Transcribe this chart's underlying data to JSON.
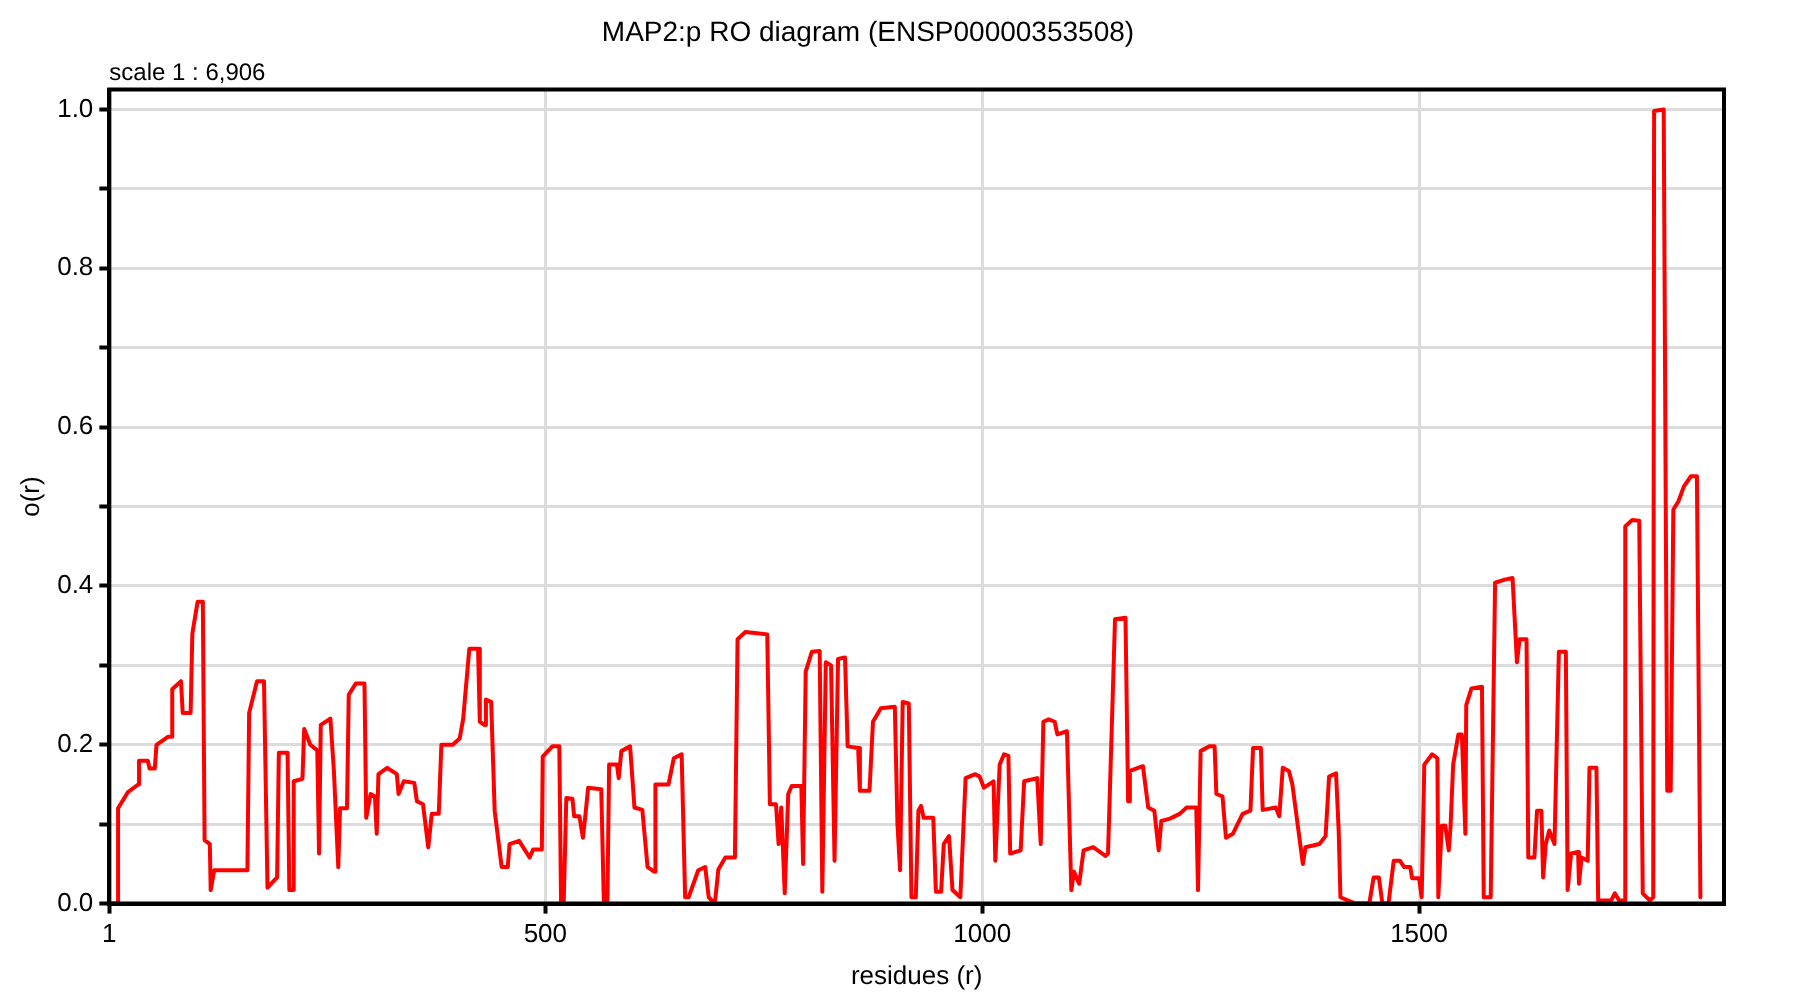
{
  "chart_data": {
    "type": "line",
    "title": "MAP2:p RO diagram (ENSP00000353508)",
    "xlabel": "residues (r)",
    "ylabel": "o(r)",
    "annotations": [
      "scale 1 : 6,906"
    ],
    "xlim": [
      1,
      1849
    ],
    "xticks": [
      1,
      500,
      1000,
      1500
    ],
    "ylim": [
      0,
      1.025
    ],
    "yticks": [
      {
        "value": 0,
        "label": "0.0"
      },
      {
        "value": 0.1,
        "label": null
      },
      {
        "value": 0.2,
        "label": "0.2"
      },
      {
        "value": 0.3,
        "label": null
      },
      {
        "value": 0.4,
        "label": "0.4"
      },
      {
        "value": 0.5,
        "label": null
      },
      {
        "value": 0.6,
        "label": "0.6"
      },
      {
        "value": 0.7,
        "label": null
      },
      {
        "value": 0.8,
        "label": "0.8"
      },
      {
        "value": 0.9,
        "label": null
      },
      {
        "value": 1.0,
        "label": "1.0"
      }
    ],
    "grid": true,
    "legend": false,
    "marker": "none",
    "line_style": "solid",
    "x": [
      1,
      11,
      11,
      22,
      34,
      35,
      45,
      47,
      53,
      55,
      68,
      73,
      73,
      83,
      85,
      94,
      96,
      102,
      108,
      110,
      116,
      117,
      121,
      159,
      161,
      170,
      178,
      182,
      193,
      195,
      205,
      207,
      212,
      212,
      222,
      224,
      231,
      239,
      241,
      243,
      254,
      258,
      263,
      265,
      273,
      275,
      283,
      293,
      295,
      300,
      305,
      307,
      309,
      319,
      330,
      332,
      338,
      350,
      353,
      360,
      366,
      370,
      378,
      381,
      394,
      402,
      406,
      413,
      423,
      425,
      430,
      432,
      438,
      442,
      450,
      457,
      459,
      470,
      482,
      486,
      496,
      497,
      508,
      516,
      518,
      521,
      524,
      531,
      533,
      539,
      543,
      546,
      549,
      564,
      567,
      571,
      573,
      582,
      584,
      587,
      597,
      602,
      611,
      617,
      625,
      626,
      641,
      647,
      656,
      660,
      664,
      675,
      683,
      687,
      694,
      698,
      706,
      717,
      720,
      729,
      754,
      757,
      764,
      767,
      770,
      774,
      778,
      782,
      793,
      795,
      798,
      805,
      814,
      817,
      821,
      827,
      831,
      835,
      843,
      846,
      858,
      860,
      871,
      875,
      884,
      900,
      903,
      906,
      909,
      916,
      919,
      924,
      927,
      930,
      933,
      944,
      947,
      953,
      956,
      962,
      966,
      975,
      981,
      992,
      997,
      1002,
      1013,
      1015,
      1020,
      1025,
      1030,
      1032,
      1044,
      1048,
      1063,
      1067,
      1070,
      1076,
      1083,
      1086,
      1097,
      1102,
      1105,
      1111,
      1116,
      1127,
      1141,
      1144,
      1152,
      1164,
      1167,
      1169,
      1184,
      1190,
      1197,
      1202,
      1205,
      1215,
      1226,
      1234,
      1245,
      1247,
      1250,
      1260,
      1266,
      1268,
      1275,
      1279,
      1287,
      1298,
      1307,
      1310,
      1319,
      1321,
      1336,
      1340,
      1344,
      1351,
      1355,
      1367,
      1370,
      1386,
      1393,
      1397,
      1405,
      1408,
      1410,
      1427,
      1443,
      1448,
      1454,
      1458,
      1465,
      1471,
      1478,
      1483,
      1490,
      1492,
      1500,
      1503,
      1506,
      1515,
      1521,
      1522,
      1526,
      1530,
      1534,
      1536,
      1539,
      1545,
      1549,
      1553,
      1554,
      1560,
      1572,
      1574,
      1582,
      1587,
      1598,
      1607,
      1612,
      1615,
      1623,
      1625,
      1632,
      1635,
      1640,
      1642,
      1645,
      1649,
      1655,
      1660,
      1668,
      1670,
      1674,
      1682,
      1683,
      1686,
      1693,
      1695,
      1703,
      1705,
      1720,
      1724,
      1729,
      1735,
      1736,
      1744,
      1752,
      1756,
      1764,
      1768,
      1769,
      1780,
      1784,
      1788,
      1791,
      1797,
      1803,
      1811,
      1818,
      1822
    ],
    "series": [
      {
        "color": "#ff0000",
        "values": [
          0,
          0,
          0.12,
          0.14,
          0.15,
          0.18,
          0.18,
          0.17,
          0.17,
          0.2,
          0.21,
          0.21,
          0.27,
          0.28,
          0.24,
          0.24,
          0.34,
          0.38,
          0.38,
          0.08,
          0.075,
          0.017,
          0.042,
          0.042,
          0.24,
          0.28,
          0.28,
          0.02,
          0.033,
          0.19,
          0.19,
          0.017,
          0.017,
          0.154,
          0.157,
          0.22,
          0.2,
          0.193,
          0.063,
          0.225,
          0.233,
          0.167,
          0.046,
          0.12,
          0.12,
          0.263,
          0.277,
          0.277,
          0.108,
          0.138,
          0.135,
          0.088,
          0.163,
          0.171,
          0.163,
          0.138,
          0.154,
          0.152,
          0.129,
          0.125,
          0.071,
          0.113,
          0.113,
          0.2,
          0.2,
          0.208,
          0.233,
          0.321,
          0.321,
          0.229,
          0.225,
          0.257,
          0.254,
          0.117,
          0.046,
          0.046,
          0.075,
          0.079,
          0.058,
          0.068,
          0.068,
          0.185,
          0.198,
          0.198,
          0,
          0,
          0.133,
          0.132,
          0.11,
          0.11,
          0.083,
          0.113,
          0.146,
          0.144,
          0,
          0,
          0.175,
          0.175,
          0.158,
          0.192,
          0.198,
          0.121,
          0.118,
          0.046,
          0.04,
          0.15,
          0.15,
          0.183,
          0.188,
          0.008,
          0.008,
          0.042,
          0.046,
          0.008,
          0,
          0.043,
          0.058,
          0.058,
          0.333,
          0.342,
          0.339,
          0.125,
          0.125,
          0.075,
          0.121,
          0.013,
          0.138,
          0.148,
          0.148,
          0.05,
          0.292,
          0.317,
          0.318,
          0.015,
          0.304,
          0.3,
          0.054,
          0.308,
          0.31,
          0.198,
          0.196,
          0.142,
          0.142,
          0.229,
          0.246,
          0.248,
          0.1,
          0.042,
          0.254,
          0.252,
          0.008,
          0.008,
          0.117,
          0.123,
          0.108,
          0.108,
          0.015,
          0.015,
          0.075,
          0.085,
          0.017,
          0.008,
          0.158,
          0.163,
          0.16,
          0.146,
          0.154,
          0.054,
          0.175,
          0.188,
          0.186,
          0.063,
          0.067,
          0.154,
          0.158,
          0.075,
          0.229,
          0.232,
          0.229,
          0.213,
          0.217,
          0.017,
          0.04,
          0.025,
          0.067,
          0.071,
          0.06,
          0.063,
          0.358,
          0.36,
          0.129,
          0.167,
          0.173,
          0.121,
          0.117,
          0.067,
          0.104,
          0.107,
          0.113,
          0.121,
          0.121,
          0.017,
          0.192,
          0.198,
          0.198,
          0.138,
          0.135,
          0.083,
          0.088,
          0.113,
          0.117,
          0.196,
          0.196,
          0.118,
          0.121,
          0.11,
          0.171,
          0.167,
          0.15,
          0.05,
          0.071,
          0.075,
          0.085,
          0.16,
          0.164,
          0.092,
          0.008,
          0,
          0,
          0.033,
          0.033,
          0,
          0,
          0.054,
          0.054,
          0.046,
          0.046,
          0.032,
          0.032,
          0.008,
          0.175,
          0.188,
          0.183,
          0.008,
          0.098,
          0.098,
          0.067,
          0.096,
          0.175,
          0.213,
          0.213,
          0.088,
          0.25,
          0.271,
          0.273,
          0.008,
          0.008,
          0.404,
          0.408,
          0.41,
          0.304,
          0.333,
          0.333,
          0.058,
          0.058,
          0.117,
          0.117,
          0.033,
          0.075,
          0.092,
          0.075,
          0.317,
          0.317,
          0.017,
          0.063,
          0.065,
          0.025,
          0.058,
          0.054,
          0.171,
          0.171,
          0.004,
          0.004,
          0.013,
          0.004,
          0.004,
          0.475,
          0.483,
          0.482,
          0.013,
          0.004,
          0.008,
          0.998,
          1.0,
          0.142,
          0.142,
          0.496,
          0.507,
          0.525,
          0.538,
          0.538,
          0.008
        ]
      }
    ]
  }
}
